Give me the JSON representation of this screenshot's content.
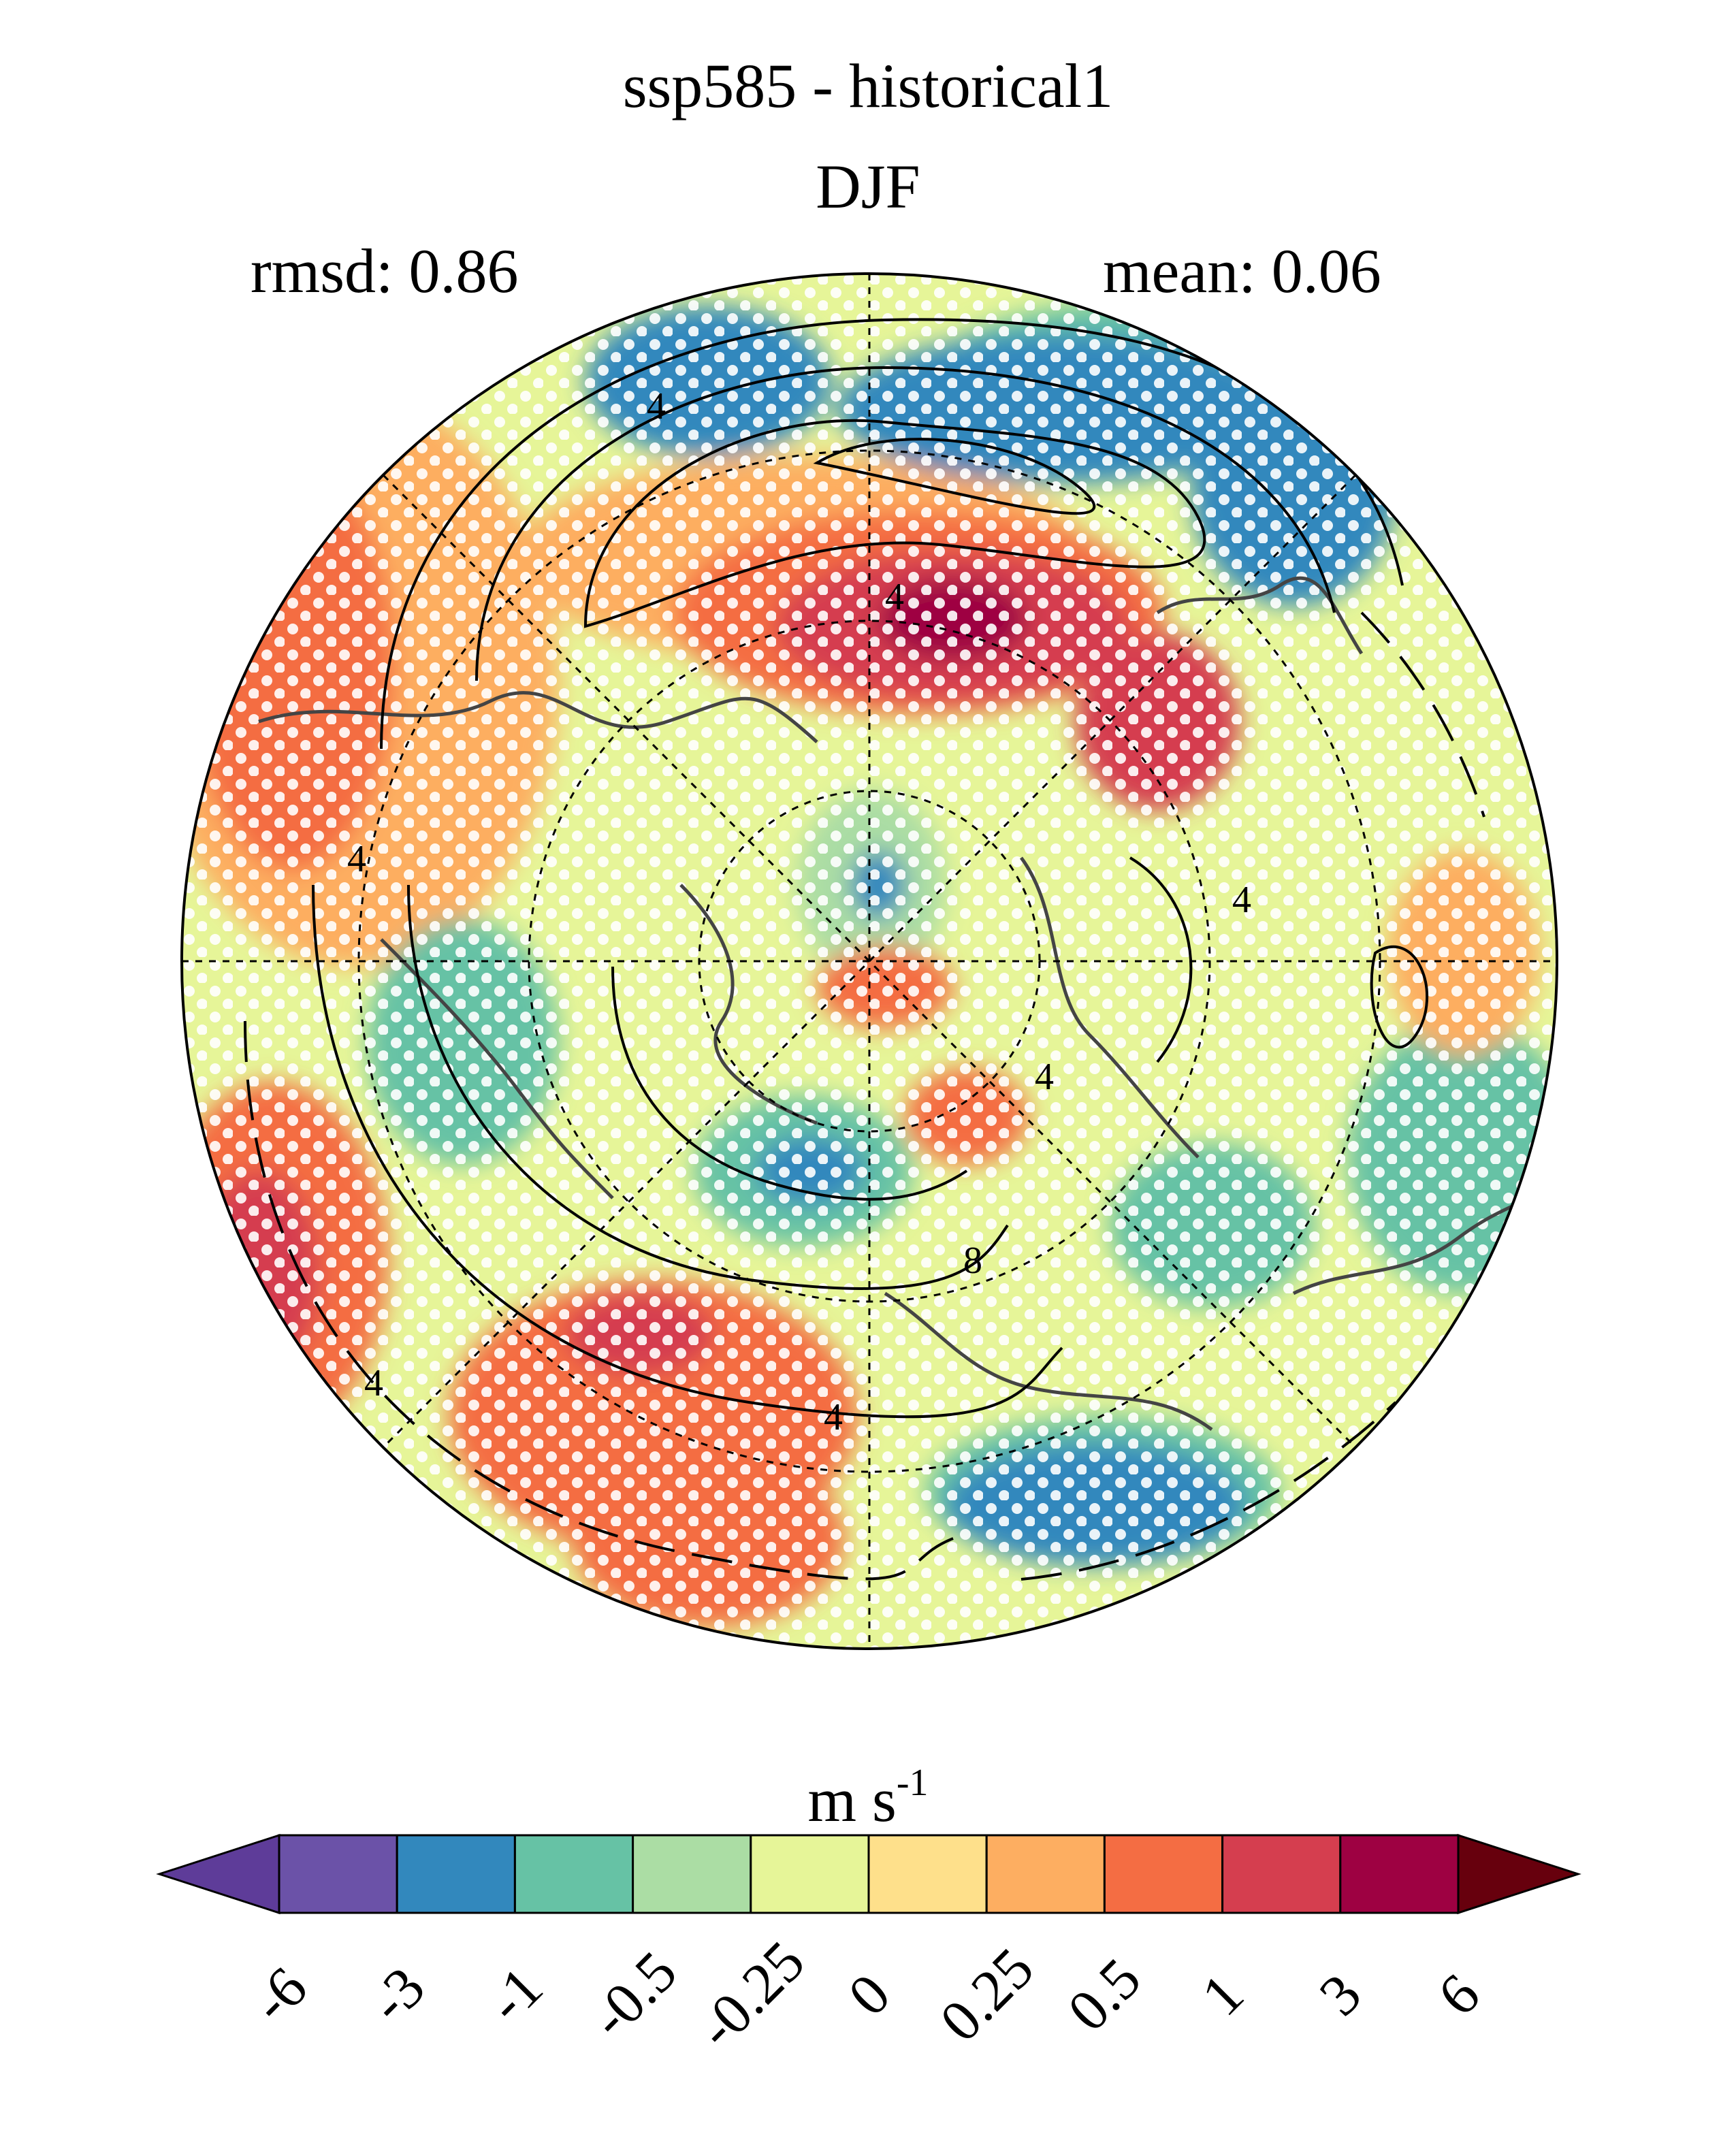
{
  "title": "ssp585 - historical1",
  "subtitle": "DJF",
  "stats": {
    "rmsd": "rmsd: 0.86",
    "mean": "mean: 0.06"
  },
  "units": {
    "base": "m s",
    "exponent": "-1"
  },
  "colorbar": {
    "ticks": [
      "-6",
      "-3",
      "-1",
      "-0.5",
      "-0.25",
      "0",
      "0.25",
      "0.5",
      "1",
      "3",
      "6"
    ],
    "colors": [
      "#5e3c99",
      "#6b52a8",
      "#3288bd",
      "#66c2a5",
      "#abdda4",
      "#e6f598",
      "#fee08b",
      "#fdae61",
      "#f46d43",
      "#d53e4f",
      "#9e0142",
      "#67000d"
    ]
  },
  "contour_labels": [
    "4",
    "4",
    "4",
    "4",
    "4",
    "4",
    "4",
    "8"
  ],
  "map": {
    "projection": "north polar stereographic",
    "stippling": "white dots",
    "hatch_color": "#ffffff",
    "coast_color": "#444444"
  }
}
